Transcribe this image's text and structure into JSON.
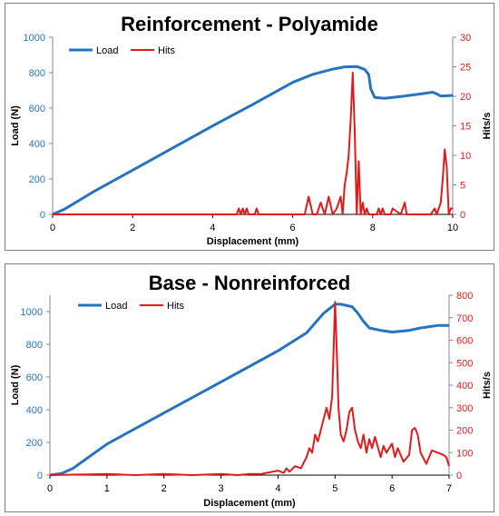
{
  "colors": {
    "load": "#2573c1",
    "hits": "#e11b1b",
    "axis": "#000000"
  },
  "chart_data": [
    {
      "type": "line",
      "title": "Reinforcement - Polyamide",
      "xlabel": "Displacement (mm)",
      "ylabel": "Load (N)",
      "y2label": "Hits/s",
      "xlim": [
        0,
        10
      ],
      "ylim": [
        0,
        1000
      ],
      "y2lim": [
        0,
        30
      ],
      "xticks": [
        "0",
        "2",
        "4",
        "6",
        "8",
        "10"
      ],
      "yticks": [
        "0",
        "200",
        "400",
        "600",
        "800",
        "1000"
      ],
      "y2ticks": [
        "0",
        "5",
        "10",
        "15",
        "20",
        "25",
        "30"
      ],
      "legend": "top-left",
      "series": [
        {
          "name": "Load",
          "axis": "left",
          "x": [
            0,
            0.3,
            1,
            2,
            3,
            4,
            5,
            6,
            6.5,
            7,
            7.3,
            7.6,
            7.8,
            7.9,
            7.95,
            8.05,
            8.3,
            8.7,
            9.2,
            9.5,
            9.6,
            9.7,
            10
          ],
          "y": [
            0,
            30,
            125,
            250,
            375,
            500,
            620,
            745,
            790,
            820,
            833,
            835,
            818,
            790,
            710,
            660,
            655,
            665,
            680,
            690,
            680,
            668,
            672
          ]
        },
        {
          "name": "Hits",
          "axis": "right",
          "x": [
            0,
            4.6,
            4.65,
            4.7,
            4.75,
            4.8,
            4.85,
            4.9,
            5.05,
            5.1,
            5.15,
            6.3,
            6.4,
            6.5,
            6.6,
            6.65,
            6.7,
            6.8,
            6.9,
            7.0,
            7.1,
            7.2,
            7.25,
            7.3,
            7.35,
            7.4,
            7.45,
            7.5,
            7.55,
            7.6,
            7.65,
            7.7,
            7.75,
            7.8,
            7.85,
            7.9,
            8.1,
            8.15,
            8.2,
            8.25,
            8.3,
            8.45,
            8.5,
            8.7,
            8.8,
            8.85,
            9.45,
            9.55,
            9.6,
            9.7,
            9.75,
            9.8,
            9.85,
            9.9,
            9.95,
            10
          ],
          "y": [
            0,
            0,
            1,
            0,
            1,
            0,
            1,
            0,
            0,
            1,
            0,
            0,
            3,
            0,
            0,
            1,
            2,
            0,
            3,
            0,
            1,
            3,
            0,
            5,
            7,
            10,
            16,
            24,
            14,
            0,
            9,
            0,
            2,
            0,
            1,
            0,
            0,
            1,
            0,
            1,
            0,
            0,
            1,
            0,
            2,
            0,
            0,
            1,
            0,
            2,
            6,
            11,
            8,
            0,
            1,
            1
          ]
        }
      ]
    },
    {
      "type": "line",
      "title": "Base - Nonreinforced",
      "xlabel": "Displacement (mm)",
      "ylabel": "Load (N)",
      "y2label": "Hits/s",
      "xlim": [
        0,
        7
      ],
      "ylim": [
        0,
        1100
      ],
      "y2lim": [
        0,
        800
      ],
      "xticks": [
        "0",
        "1",
        "2",
        "3",
        "4",
        "5",
        "6",
        "7"
      ],
      "yticks": [
        "0",
        "200",
        "400",
        "600",
        "800",
        "1000"
      ],
      "y2ticks": [
        "0",
        "100",
        "200",
        "300",
        "400",
        "500",
        "600",
        "700",
        "800"
      ],
      "legend": "top-left",
      "series": [
        {
          "name": "Load",
          "axis": "left",
          "x": [
            0,
            0.2,
            0.4,
            1,
            2,
            3,
            4,
            4.5,
            4.8,
            5.0,
            5.1,
            5.3,
            5.4,
            5.5,
            5.6,
            5.8,
            6.0,
            6.3,
            6.5,
            6.8,
            7
          ],
          "y": [
            0,
            10,
            40,
            190,
            380,
            570,
            760,
            870,
            990,
            1045,
            1045,
            1030,
            990,
            940,
            900,
            885,
            875,
            885,
            900,
            915,
            915
          ]
        },
        {
          "name": "Hits",
          "axis": "right",
          "x": [
            0,
            1,
            1.5,
            2,
            2.5,
            3,
            3.3,
            3.5,
            3.7,
            3.8,
            3.9,
            4.0,
            4.1,
            4.15,
            4.2,
            4.3,
            4.4,
            4.5,
            4.55,
            4.6,
            4.65,
            4.7,
            4.75,
            4.8,
            4.85,
            4.9,
            4.95,
            5.0,
            5.03,
            5.06,
            5.1,
            5.15,
            5.2,
            5.25,
            5.3,
            5.35,
            5.4,
            5.45,
            5.5,
            5.55,
            5.6,
            5.65,
            5.7,
            5.8,
            5.85,
            5.9,
            6.0,
            6.05,
            6.1,
            6.2,
            6.3,
            6.35,
            6.4,
            6.45,
            6.5,
            6.6,
            6.7,
            6.8,
            6.9,
            6.95,
            7
          ],
          "y": [
            0,
            5,
            0,
            5,
            0,
            5,
            0,
            5,
            5,
            10,
            15,
            20,
            10,
            30,
            15,
            40,
            30,
            80,
            120,
            100,
            180,
            150,
            200,
            250,
            300,
            250,
            350,
            770,
            550,
            300,
            180,
            150,
            200,
            280,
            300,
            200,
            150,
            120,
            180,
            100,
            160,
            120,
            170,
            80,
            130,
            100,
            140,
            80,
            120,
            60,
            90,
            200,
            210,
            180,
            100,
            50,
            110,
            100,
            90,
            80,
            40
          ]
        }
      ]
    }
  ]
}
